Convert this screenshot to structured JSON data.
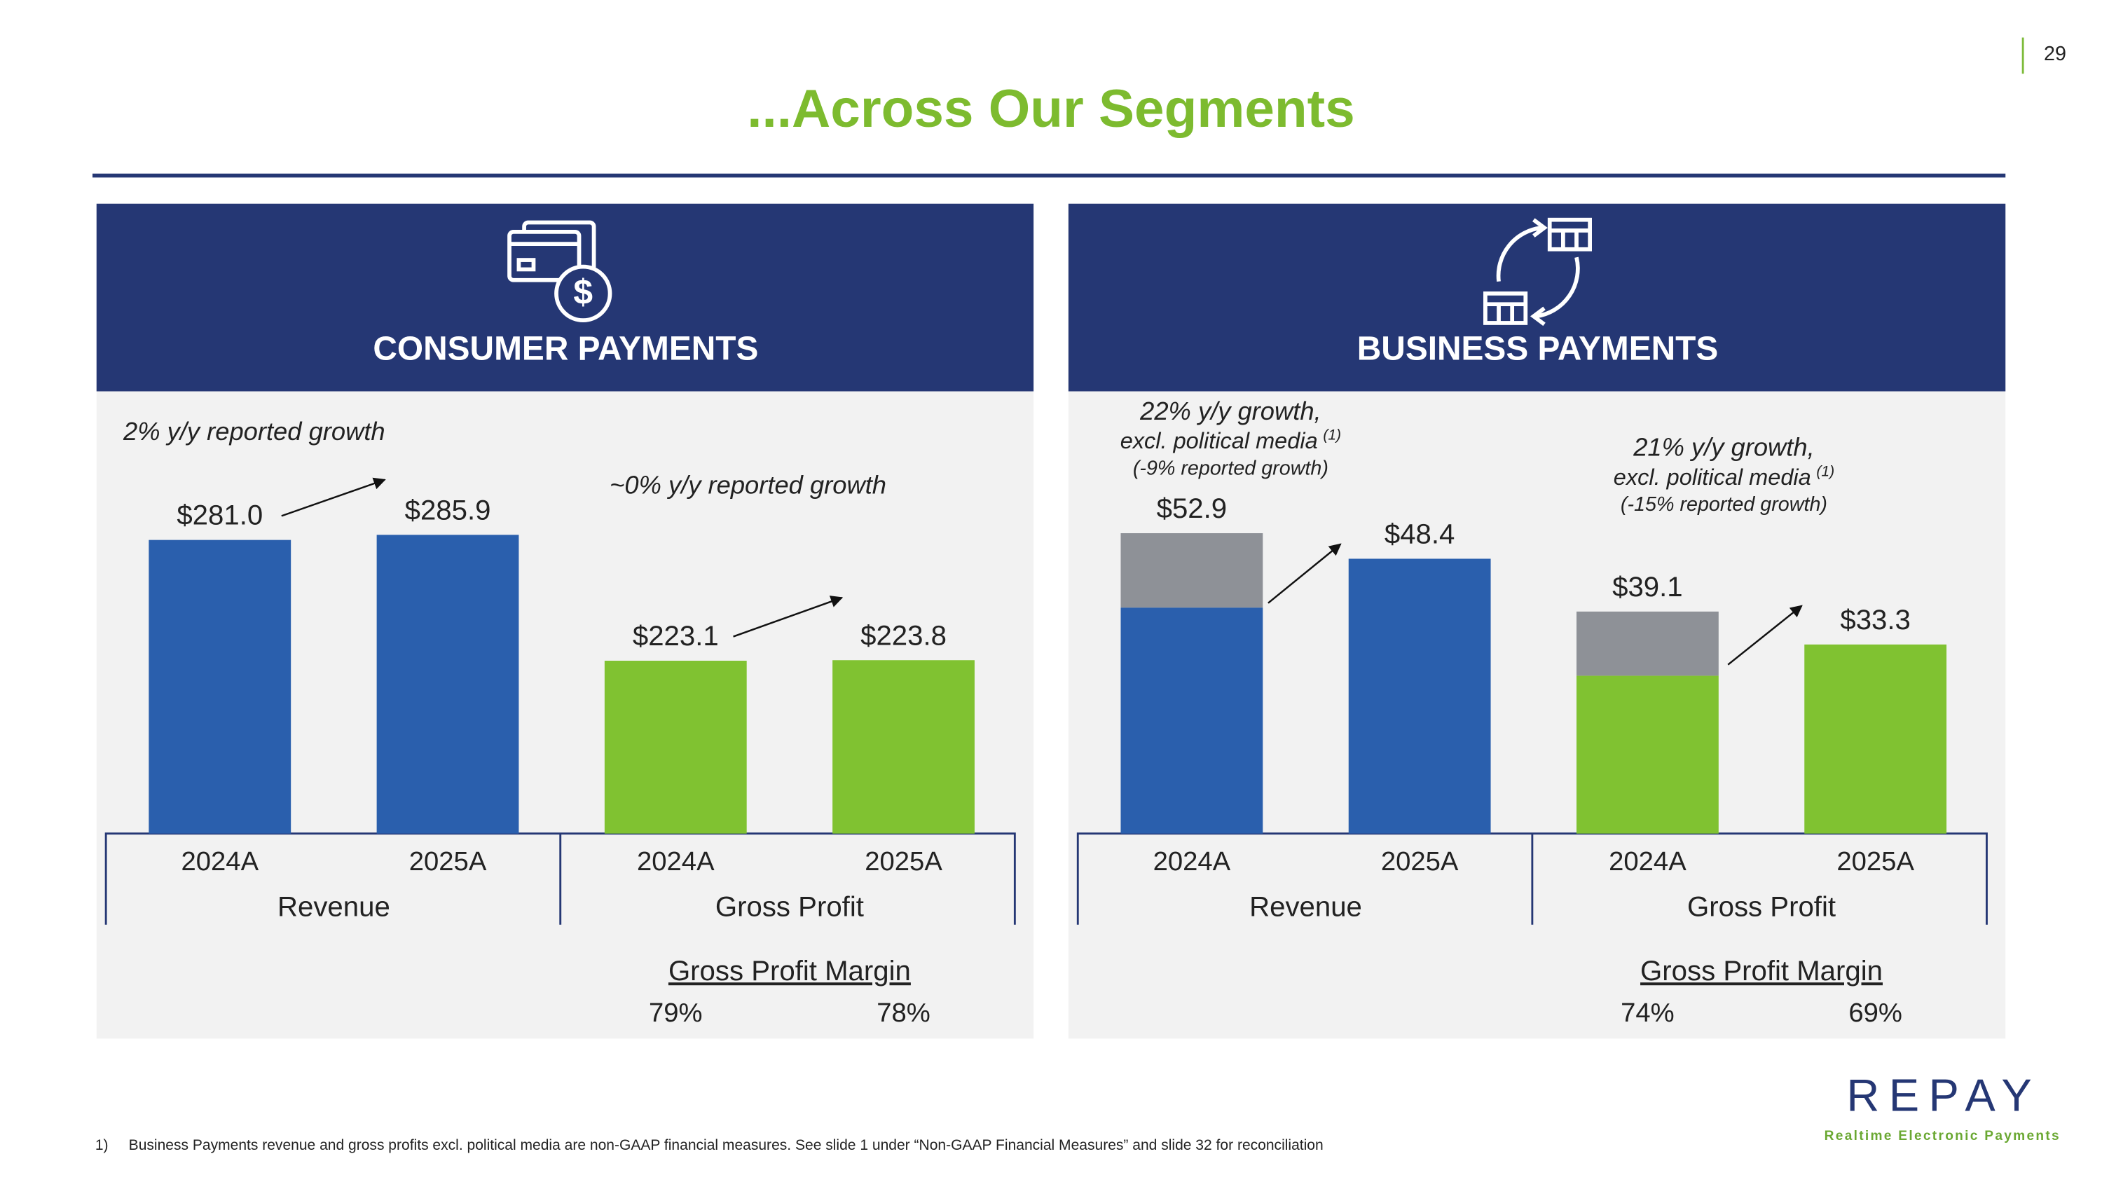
{
  "page": {
    "page_number": "29",
    "title": "...Across Our Segments",
    "footnote_marker": "1)",
    "footnote": "Business Payments revenue and gross profits excl. political media are non-GAAP financial measures. See slide 1 under “Non-GAAP Financial Measures” and slide 32 for reconciliation",
    "logo": "REPAY",
    "tagline": "Realtime Electronic Payments"
  },
  "chart_data": [
    {
      "type": "bar",
      "title": "CONSUMER PAYMENTS",
      "groups": [
        {
          "name": "Revenue",
          "categories": [
            "2024A",
            "2025A"
          ],
          "ylim": [
            0,
            413
          ],
          "series": [
            {
              "color": "#2a5fad",
              "values": [
                281.0,
                285.9
              ],
              "value_labels": [
                "$281.0",
                "$285.9"
              ]
            }
          ],
          "annotation": {
            "lines": [
              "2% y/y reported growth"
            ]
          }
        },
        {
          "name": "Gross Profit",
          "categories": [
            "2024A",
            "2025A"
          ],
          "ylim": [
            0,
            557
          ],
          "series": [
            {
              "color": "#80c231",
              "values": [
                223.1,
                223.8
              ],
              "value_labels": [
                "$223.1",
                "$223.8"
              ]
            }
          ],
          "annotation": {
            "lines": [
              "~0% y/y reported growth"
            ]
          },
          "margin_title": "Gross Profit Margin",
          "margins": [
            79,
            78
          ],
          "margin_labels": [
            "79%",
            "78%"
          ]
        }
      ]
    },
    {
      "type": "stacked_bar",
      "title": "BUSINESS PAYMENTS",
      "groups": [
        {
          "name": "Revenue",
          "categories": [
            "2024A",
            "2025A"
          ],
          "ylim": [
            0,
            76
          ],
          "series": [
            {
              "color": "#2a5fad",
              "values": [
                39.8,
                48.4
              ]
            },
            {
              "color": "#8e9197",
              "values": [
                13.1,
                null
              ]
            }
          ],
          "totals": [
            52.9,
            48.4
          ],
          "value_labels": [
            "$52.9",
            "$48.4"
          ],
          "annotation": {
            "lines": [
              "22% y/y growth,",
              "excl. political media",
              "(-9% reported growth)"
            ],
            "note": "(1)"
          }
        },
        {
          "name": "Gross Profit",
          "categories": [
            "2024A",
            "2025A"
          ],
          "ylim": [
            0,
            76
          ],
          "series": [
            {
              "color": "#80c231",
              "values": [
                27.8,
                33.3
              ]
            },
            {
              "color": "#8e9197",
              "values": [
                11.3,
                null
              ]
            }
          ],
          "totals": [
            39.1,
            33.3
          ],
          "value_labels": [
            "$39.1",
            "$33.3"
          ],
          "annotation": {
            "lines": [
              "21% y/y growth,",
              "excl. political media",
              "(-15% reported growth)"
            ],
            "note": "(1)"
          },
          "margin_title": "Gross Profit Margin",
          "margins": [
            74,
            69
          ],
          "margin_labels": [
            "74%",
            "69%"
          ]
        }
      ]
    }
  ]
}
